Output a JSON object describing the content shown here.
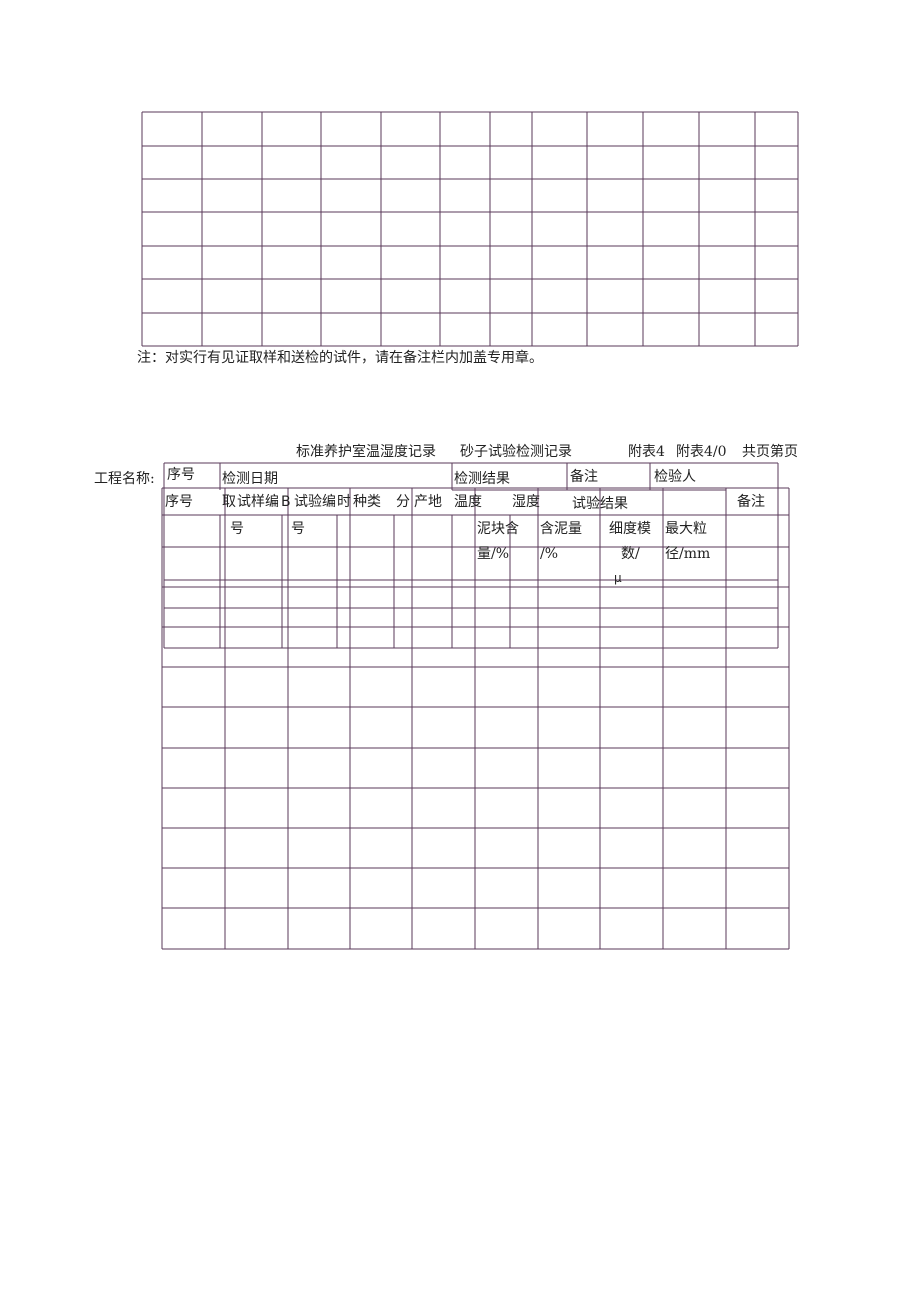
{
  "top_table": {
    "rows": 7,
    "cols": 12
  },
  "note": "注：对实行有见证取样和送检的试件，请在备注栏内加盖专用章。",
  "title_a": "标准养护室温湿度记录",
  "title_b": "砂子试验检测记录",
  "appendix_a": "附表4",
  "appendix_b": "附表4/0",
  "project_label": "工程名称:",
  "pages_label": "共页第页",
  "overlay_header": [
    "序号",
    "检测日期",
    "检测结果",
    "备注",
    "检验人"
  ],
  "header_row": [
    "序号",
    "取",
    "试样编",
    "B",
    "试验编",
    "时",
    "种类",
    "分",
    "产地",
    "温度",
    "湿度",
    "试验结果",
    "备注"
  ],
  "sub_row1": [
    "号",
    "号",
    "泥块含",
    "含泥量",
    "细度模",
    "最大粒"
  ],
  "sub_row2": [
    "量/%",
    "/%",
    "数/",
    "径/mm"
  ],
  "mu": "μ",
  "line_color": "#5a3a5a"
}
